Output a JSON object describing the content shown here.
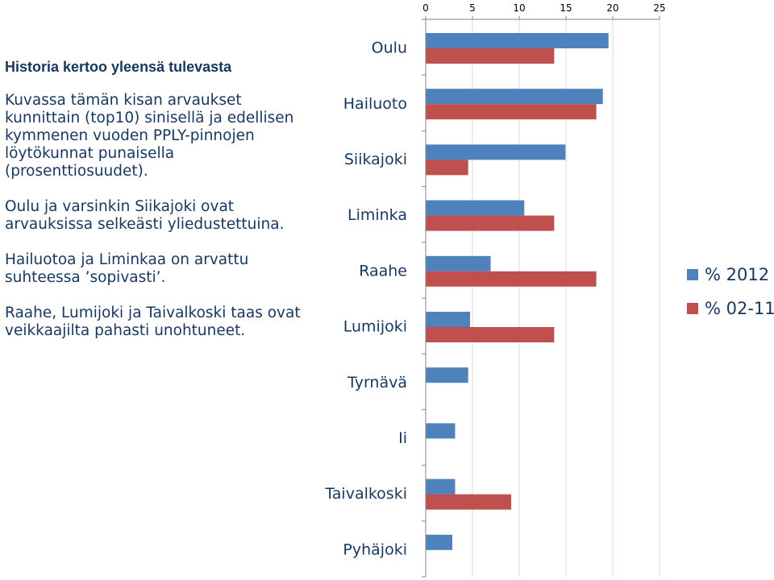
{
  "text_panel": {
    "heading": "Historia kertoo yleensä tulevasta",
    "paragraphs": [
      "Kuvassa tämän kisan arvaukset kunnittain (top10) sinisellä ja edellisen kymmenen vuoden PPLY-pinnojen löytökunnat punaisella (prosenttiosuudet).",
      "Oulu ja varsinkin Siikajoki ovat arvauksissa selkeästi yliedustettuina.",
      "Hailuotoa ja Liminkaa on arvattu suhteessa ’sopivasti’.",
      "Raahe, Lumijoki ja Taivalkoski taas ovat veikkaajilta pahasti unohtuneet."
    ]
  },
  "chart_data": {
    "type": "bar",
    "orientation": "horizontal",
    "title": "",
    "xlabel": "",
    "ylabel": "",
    "categories": [
      "Oulu",
      "Hailuoto",
      "Siikajoki",
      "Liminka",
      "Raahe",
      "Lumijoki",
      "Tyrnävä",
      "Ii",
      "Taivalkoski",
      "Pyhäjoki"
    ],
    "series": [
      {
        "name": "% 2012",
        "color": "#4f81bd",
        "values": [
          19.5,
          18.9,
          14.9,
          10.5,
          6.9,
          4.7,
          4.5,
          3.1,
          3.1,
          2.8
        ]
      },
      {
        "name": "% 02-11",
        "color": "#c0504d",
        "values": [
          13.7,
          18.2,
          4.5,
          13.7,
          18.2,
          13.7,
          null,
          null,
          9.1,
          null
        ]
      }
    ],
    "xlim": [
      0,
      25
    ],
    "x_ticks": [
      "0",
      "5",
      "10",
      "15",
      "20",
      "25"
    ],
    "x_axis_position": "top",
    "grid": "vertical",
    "legend_position": "right"
  }
}
